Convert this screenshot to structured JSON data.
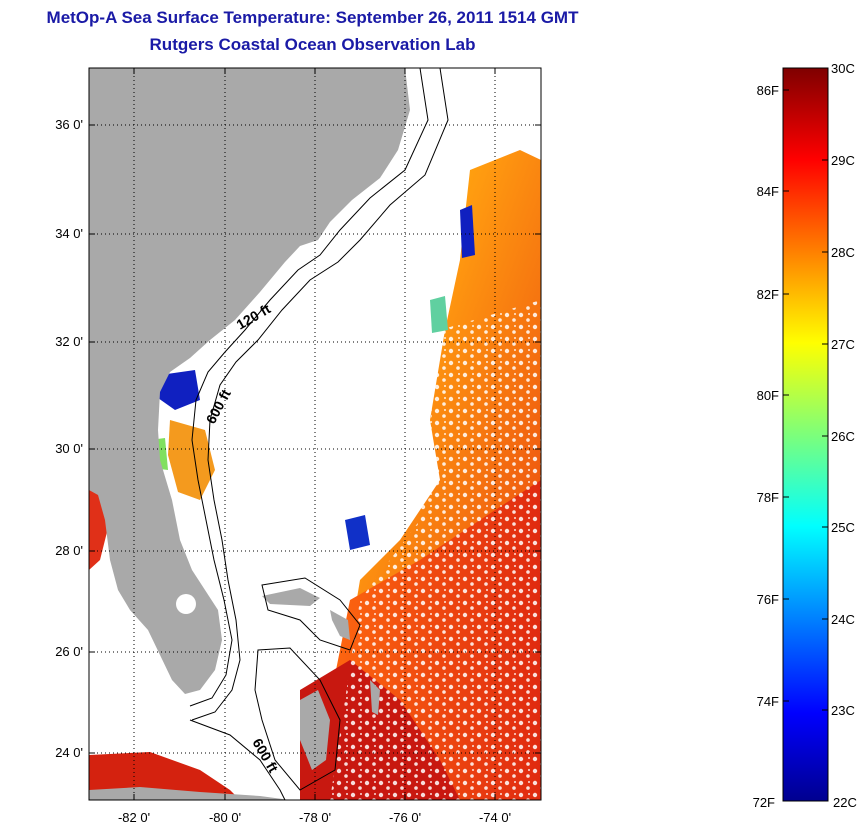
{
  "title": "MetOp-A Sea Surface Temperature:  September 26, 2011 1514 GMT",
  "subtitle": "Rutgers Coastal Ocean Observation Lab",
  "map": {
    "lat_ticks": [
      "24 0'",
      "26 0'",
      "28 0'",
      "30 0'",
      "32 0'",
      "34 0'",
      "36 0'"
    ],
    "lon_ticks": [
      "-82 0'",
      "-80 0'",
      "-78 0'",
      "-76 0'",
      "-74 0'"
    ],
    "lat_range": [
      23,
      37.5
    ],
    "lon_range": [
      -83,
      -73
    ],
    "contours": [
      "120 ft",
      "600 ft",
      "600 ft"
    ],
    "land_color": "#a9a9a9",
    "no_data_color": "#ffffff"
  },
  "colorbar": {
    "f_labels": [
      "86F",
      "84F",
      "82F",
      "80F",
      "78F",
      "76F",
      "74F",
      "72F"
    ],
    "c_labels": [
      "30C",
      "29C",
      "28C",
      "27C",
      "26C",
      "25C",
      "24C",
      "23C",
      "22C"
    ],
    "range_c": [
      22,
      30
    ]
  }
}
